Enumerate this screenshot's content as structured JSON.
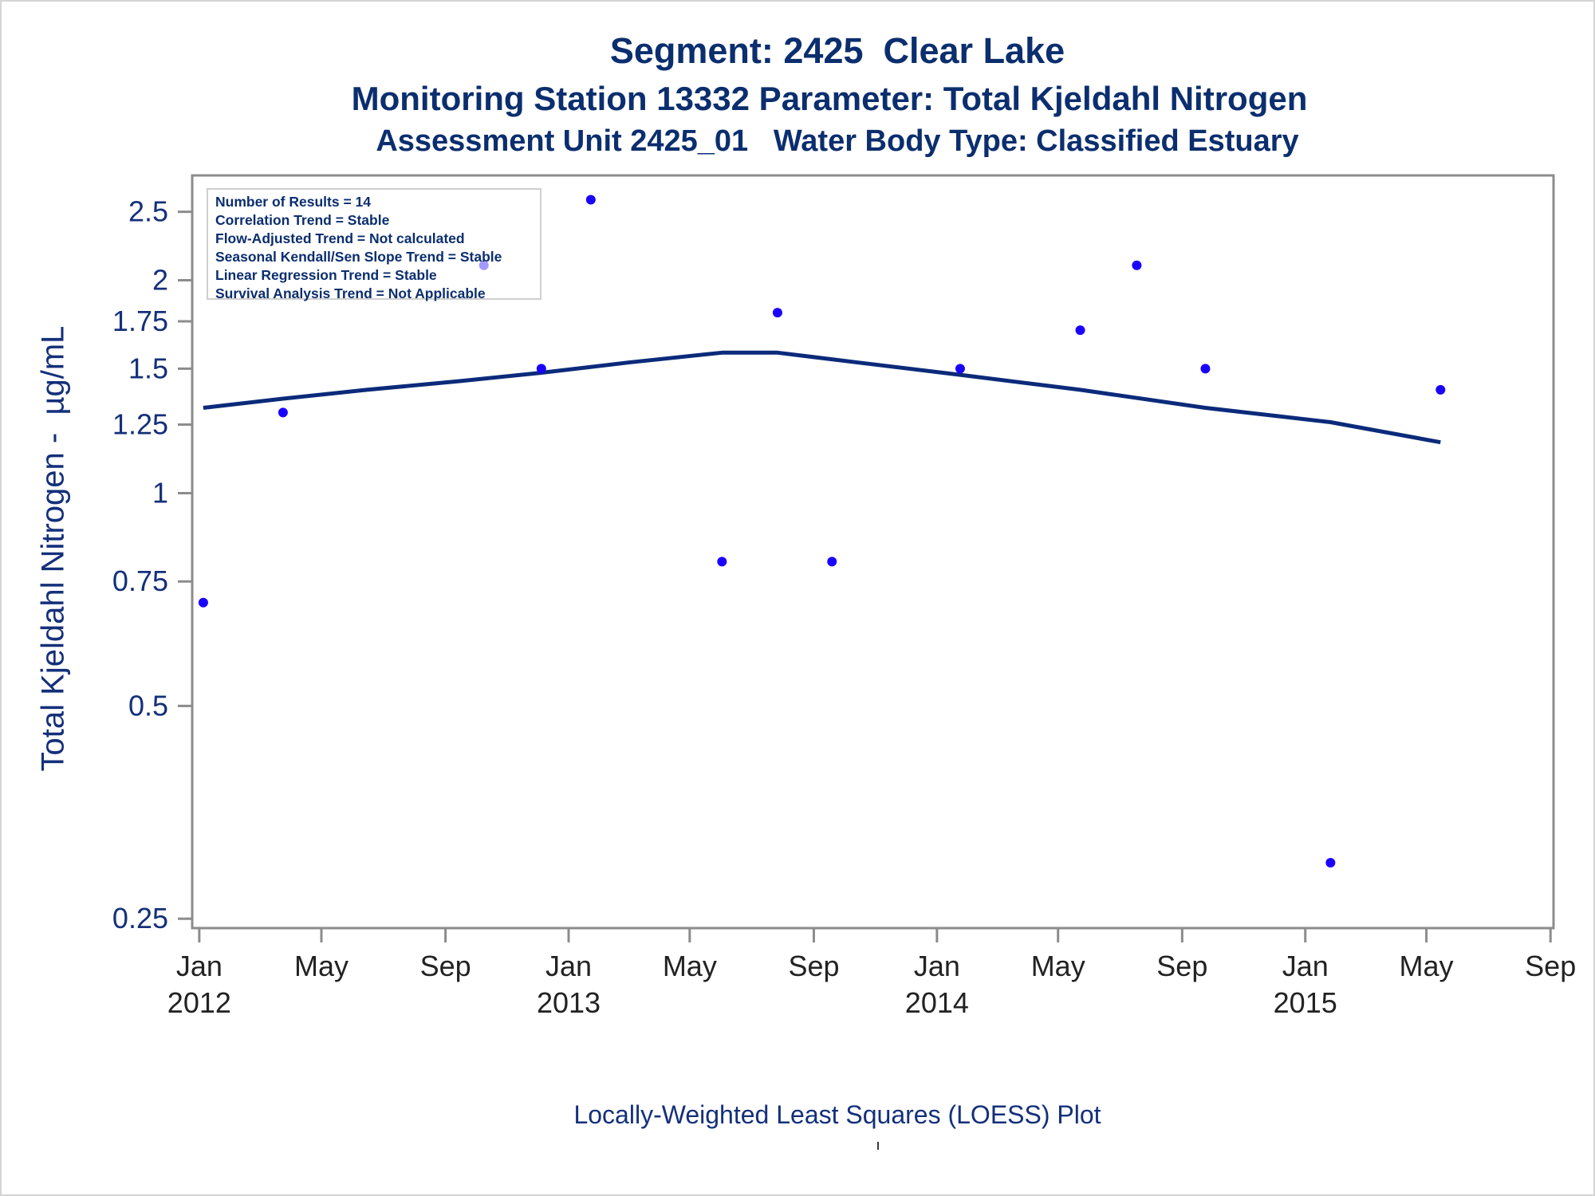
{
  "colors": {
    "title": "#0b2e6e",
    "text": "#14307a",
    "axis": "#8c8c8c",
    "point": "#1a00ff",
    "loess": "#0b2a7a",
    "xtick_text": "#222222"
  },
  "titles": {
    "line1": "Segment: 2425  Clear Lake",
    "line2": "Monitoring Station 13332 Parameter: Total Kjeldahl Nitrogen",
    "line3": "Assessment Unit 2425_01   Water Body Type: Classified Estuary"
  },
  "stats_box": [
    "Number of Results = 14",
    "Correlation Trend = Stable",
    "Flow-Adjusted Trend = Not calculated",
    "Seasonal Kendall/Sen Slope Trend = Stable",
    "Linear Regression Trend = Stable",
    "Survival Analysis Trend = Not Applicable"
  ],
  "footnote": "Locally-Weighted Least Squares (LOESS) Plot",
  "chart_data": {
    "type": "scatter",
    "ylabel": "Total Kjeldahl Nitrogen -  µg/mL",
    "xlabel": "",
    "y_scale": "log",
    "ylim": [
      0.245,
      2.7
    ],
    "xlim": [
      "2011-12-25",
      "2015-09-04"
    ],
    "y_ticks": [
      {
        "value": 0.25,
        "label": "0.25"
      },
      {
        "value": 0.5,
        "label": "0.5"
      },
      {
        "value": 0.75,
        "label": "0.75"
      },
      {
        "value": 1,
        "label": "1"
      },
      {
        "value": 1.25,
        "label": "1.25"
      },
      {
        "value": 1.5,
        "label": "1.5"
      },
      {
        "value": 1.75,
        "label": "1.75"
      },
      {
        "value": 2,
        "label": "2"
      },
      {
        "value": 2.5,
        "label": "2.5"
      }
    ],
    "x_ticks": [
      {
        "date": "2012-01-01",
        "label": "Jan",
        "year": "2012"
      },
      {
        "date": "2012-05-01",
        "label": "May",
        "year": ""
      },
      {
        "date": "2012-09-01",
        "label": "Sep",
        "year": ""
      },
      {
        "date": "2013-01-01",
        "label": "Jan",
        "year": "2013"
      },
      {
        "date": "2013-05-01",
        "label": "May",
        "year": ""
      },
      {
        "date": "2013-09-01",
        "label": "Sep",
        "year": ""
      },
      {
        "date": "2014-01-01",
        "label": "Jan",
        "year": "2014"
      },
      {
        "date": "2014-05-01",
        "label": "May",
        "year": ""
      },
      {
        "date": "2014-09-01",
        "label": "Sep",
        "year": ""
      },
      {
        "date": "2015-01-01",
        "label": "Jan",
        "year": "2015"
      },
      {
        "date": "2015-05-01",
        "label": "May",
        "year": ""
      },
      {
        "date": "2015-09-01",
        "label": "Sep",
        "year": ""
      }
    ],
    "points": [
      {
        "x": "2012-01-05",
        "y": 0.7
      },
      {
        "x": "2012-03-24",
        "y": 1.3
      },
      {
        "x": "2012-10-09",
        "y": 2.1
      },
      {
        "x": "2012-12-05",
        "y": 1.5
      },
      {
        "x": "2013-01-23",
        "y": 2.6
      },
      {
        "x": "2013-06-02",
        "y": 0.8
      },
      {
        "x": "2013-07-27",
        "y": 1.8
      },
      {
        "x": "2013-09-19",
        "y": 0.8
      },
      {
        "x": "2014-01-24",
        "y": 1.5
      },
      {
        "x": "2014-05-23",
        "y": 1.7
      },
      {
        "x": "2014-07-18",
        "y": 2.1
      },
      {
        "x": "2014-09-24",
        "y": 1.5
      },
      {
        "x": "2015-01-26",
        "y": 0.3
      },
      {
        "x": "2015-05-15",
        "y": 1.4
      }
    ],
    "loess_line": [
      {
        "x": "2012-01-05",
        "y": 1.32
      },
      {
        "x": "2012-03-24",
        "y": 1.36
      },
      {
        "x": "2012-06-15",
        "y": 1.4
      },
      {
        "x": "2012-09-15",
        "y": 1.44
      },
      {
        "x": "2012-12-05",
        "y": 1.48
      },
      {
        "x": "2013-03-01",
        "y": 1.53
      },
      {
        "x": "2013-06-02",
        "y": 1.58
      },
      {
        "x": "2013-07-27",
        "y": 1.58
      },
      {
        "x": "2013-10-15",
        "y": 1.53
      },
      {
        "x": "2014-01-24",
        "y": 1.47
      },
      {
        "x": "2014-05-23",
        "y": 1.4
      },
      {
        "x": "2014-09-24",
        "y": 1.32
      },
      {
        "x": "2015-01-26",
        "y": 1.26
      },
      {
        "x": "2015-05-15",
        "y": 1.18
      }
    ]
  }
}
